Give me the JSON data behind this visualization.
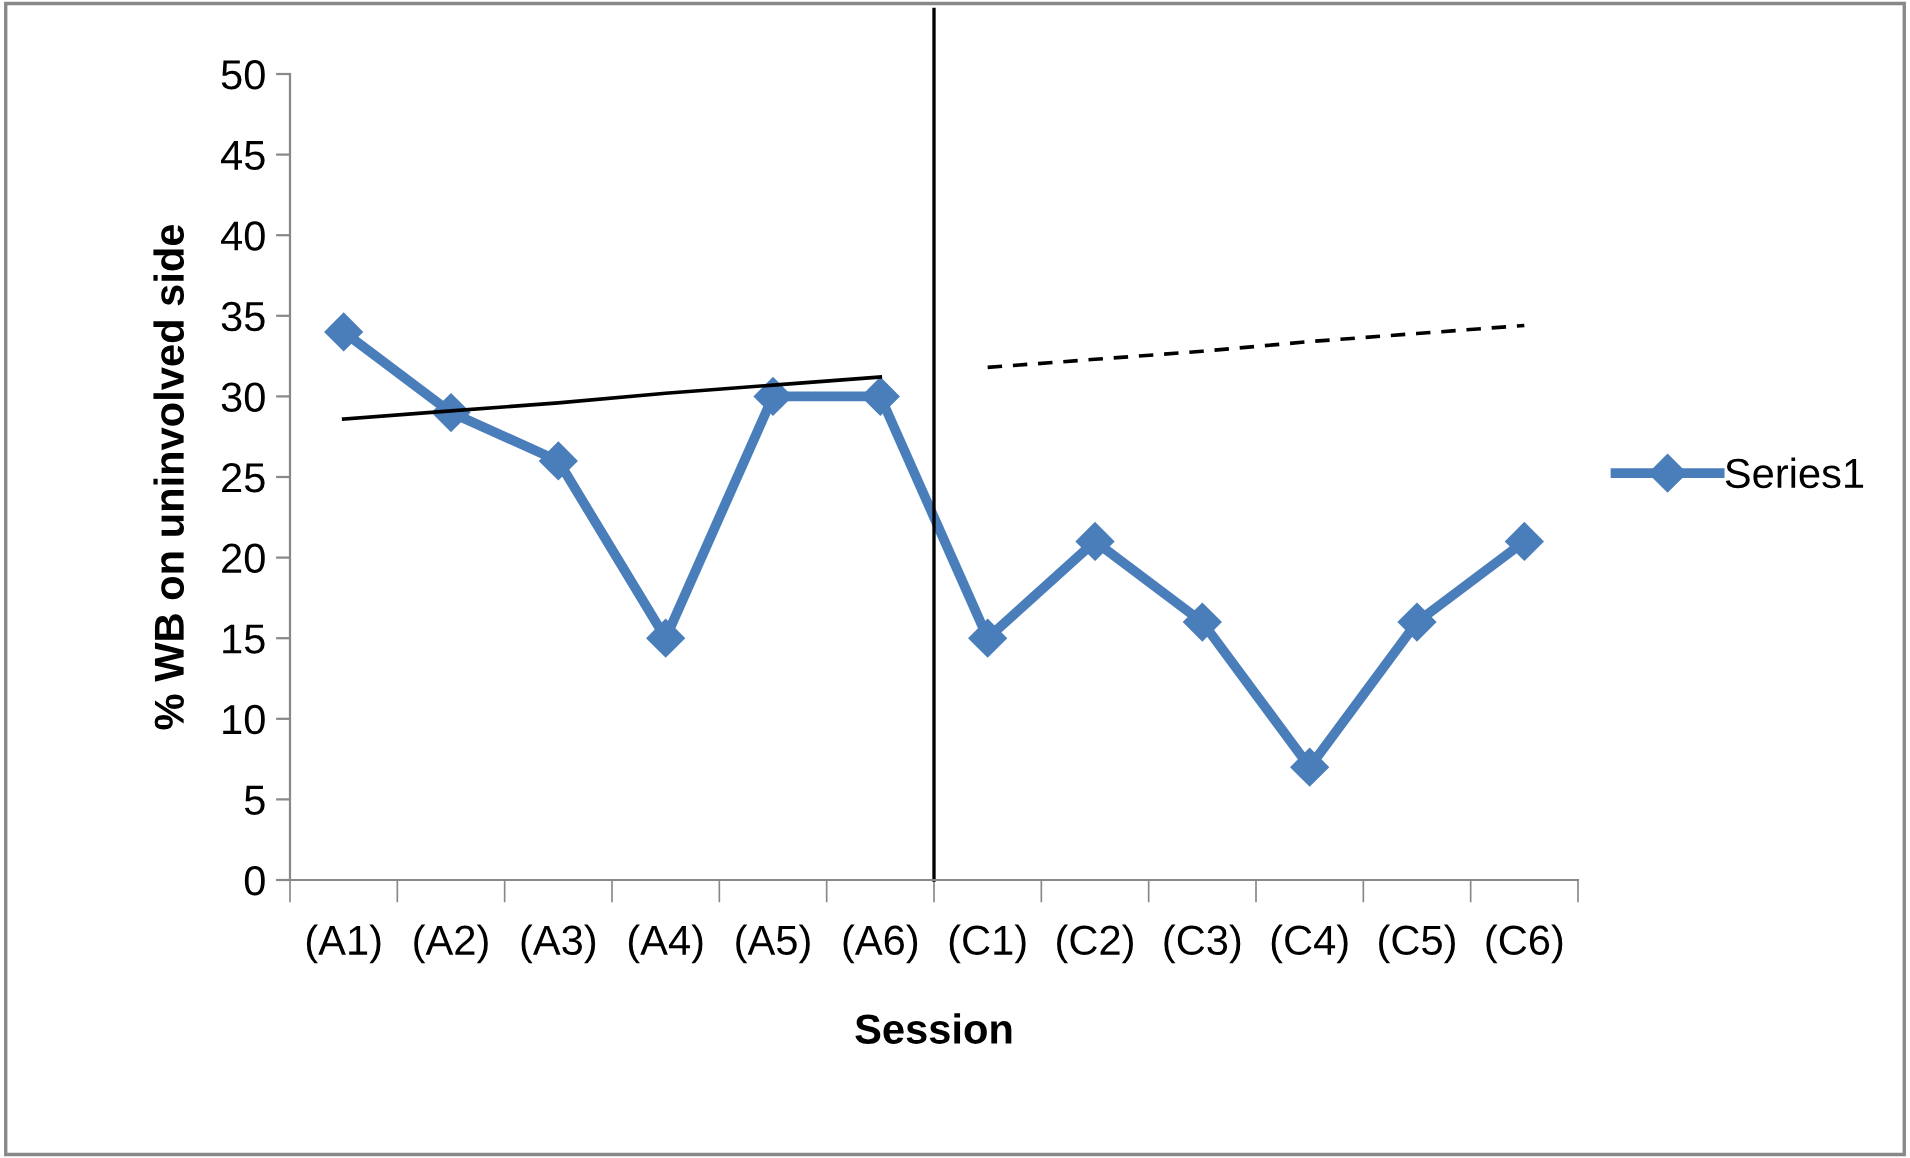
{
  "chart_data": {
    "type": "line",
    "xlabel": "Session",
    "ylabel": "% WB on uninvolved side",
    "categories": [
      "(A1)",
      "(A2)",
      "(A3)",
      "(A4)",
      "(A5)",
      "(A6)",
      "(C1)",
      "(C2)",
      "(C3)",
      "(C4)",
      "(C5)",
      "(C6)"
    ],
    "series": [
      {
        "name": "Series1",
        "color": "#4a7ebb",
        "values": [
          34,
          29,
          26,
          15,
          30,
          30,
          15,
          21,
          16,
          7,
          16,
          21
        ],
        "marker": "diamond",
        "line_style": "solid"
      },
      {
        "type": "line",
        "color": "#000000",
        "values": [
          28.6,
          29.1,
          29.6,
          30.2,
          30.7,
          31.2,
          null,
          null,
          null,
          null,
          null,
          null
        ],
        "marker": "none",
        "line_style": "solid"
      },
      {
        "type": "line",
        "color": "#000000",
        "values": [
          null,
          null,
          null,
          null,
          null,
          null,
          31.8,
          32.3,
          32.8,
          33.4,
          33.9,
          34.4
        ],
        "marker": "none",
        "line_style": "dashed"
      }
    ],
    "ylim": [
      0,
      50
    ],
    "yticks": [
      0,
      5,
      10,
      15,
      20,
      25,
      30,
      35,
      40,
      45,
      50
    ],
    "grid": false,
    "legend": "right"
  }
}
